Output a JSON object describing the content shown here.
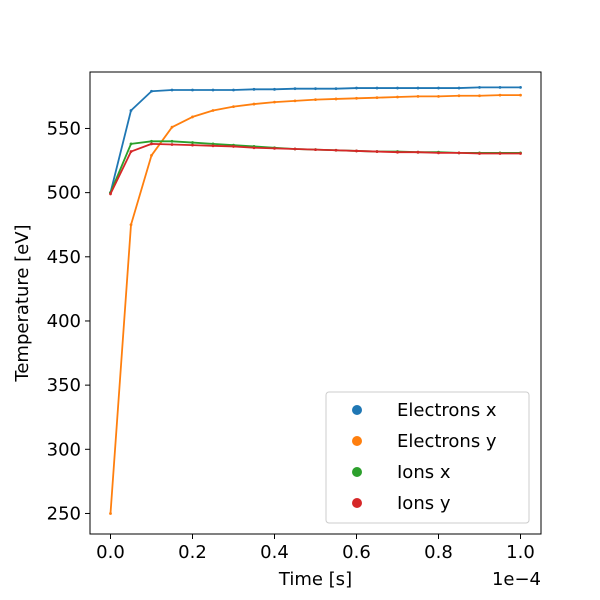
{
  "chart_data": {
    "type": "line",
    "xlabel": "Time [s]",
    "ylabel": "Temperature [eV]",
    "x_offset_text": "1e−4",
    "xlim": [
      -0.05,
      1.05
    ],
    "ylim": [
      234,
      594
    ],
    "xticks": [
      0.0,
      0.2,
      0.4,
      0.6,
      0.8,
      1.0
    ],
    "xtick_labels": [
      "0.0",
      "0.2",
      "0.4",
      "0.6",
      "0.8",
      "1.0"
    ],
    "yticks": [
      250,
      300,
      350,
      400,
      450,
      500,
      550
    ],
    "ytick_labels": [
      "250",
      "300",
      "350",
      "400",
      "450",
      "500",
      "550"
    ],
    "x": [
      0.0,
      0.05,
      0.1,
      0.15,
      0.2,
      0.25,
      0.3,
      0.35,
      0.4,
      0.45,
      0.5,
      0.55,
      0.6,
      0.65,
      0.7,
      0.75,
      0.8,
      0.85,
      0.9,
      0.95,
      1.0
    ],
    "legend_position": "lower-right",
    "grid": false,
    "series": [
      {
        "name": "Electrons x",
        "color": "#1f77b4",
        "values": [
          500,
          564,
          579,
          580,
          580,
          580,
          580,
          580.5,
          580.5,
          581,
          581,
          581,
          581.5,
          581.5,
          581.5,
          581.5,
          581.5,
          581.5,
          582,
          582,
          582
        ]
      },
      {
        "name": "Electrons y",
        "color": "#ff7f0e",
        "values": [
          250,
          475,
          529,
          551,
          559,
          564,
          567,
          569,
          570.5,
          571.5,
          572.5,
          573,
          573.5,
          574,
          574.5,
          575,
          575,
          575.5,
          575.5,
          576,
          576
        ]
      },
      {
        "name": "Ions x",
        "color": "#2ca02c",
        "values": [
          500,
          538,
          540,
          540,
          539,
          538,
          537,
          536,
          535,
          534,
          533.5,
          533,
          532.5,
          532,
          532,
          531.5,
          531.5,
          531,
          531,
          531,
          531
        ]
      },
      {
        "name": "Ions y",
        "color": "#d62728",
        "values": [
          499,
          532,
          538,
          537.5,
          537,
          536.5,
          536,
          535,
          534.5,
          534,
          533.5,
          533,
          532.5,
          532,
          531.5,
          531.5,
          531,
          531,
          530.5,
          530.5,
          530.5
        ]
      }
    ]
  }
}
